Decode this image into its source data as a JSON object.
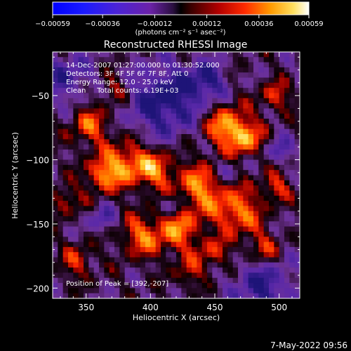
{
  "chart_data": {
    "type": "heatmap",
    "title": "Reconstructed RHESSI Image",
    "xlabel": "Heliocentric X (arcsec)",
    "ylabel": "Heliocentric Y (arcsec)",
    "xlim": [
      324,
      516
    ],
    "ylim": [
      -208,
      -16
    ],
    "x_ticks": [
      350,
      400,
      450,
      500
    ],
    "y_ticks": [
      -50,
      -100,
      -150,
      -200
    ],
    "x_tick_labels": [
      "350",
      "400",
      "450",
      "500"
    ],
    "y_tick_labels": [
      "−50",
      "−100",
      "−150",
      "−200"
    ],
    "colorbar": {
      "range": [
        -0.00059,
        0.00059
      ],
      "ticks": [
        -0.00059,
        -0.00036,
        -0.00012,
        0.00012,
        0.00036,
        0.00059
      ],
      "tick_labels": [
        "−0.00059",
        "−0.00036",
        "−0.00012",
        "0.00012",
        "0.00036",
        "0.00059"
      ],
      "unit_label": "(photons cm⁻² s⁻¹ asec⁻²)"
    },
    "annotations": [
      "14-Dec-2007 01:27:00.000 to 01:30:52.000",
      "Detectors: 3F 4F 5F 6F 7F 8F, Att 0",
      "Energy Range: 12.0 - 25.0 keV",
      "Clean     Total counts: 6.19E+03"
    ],
    "peak_label": "Position of Peak = [392,-207]",
    "grid": false,
    "colors": {
      "background": "#000000",
      "foreground": "#ffffff"
    }
  },
  "footer": {
    "timestamp": "7-May-2022 09:56"
  }
}
